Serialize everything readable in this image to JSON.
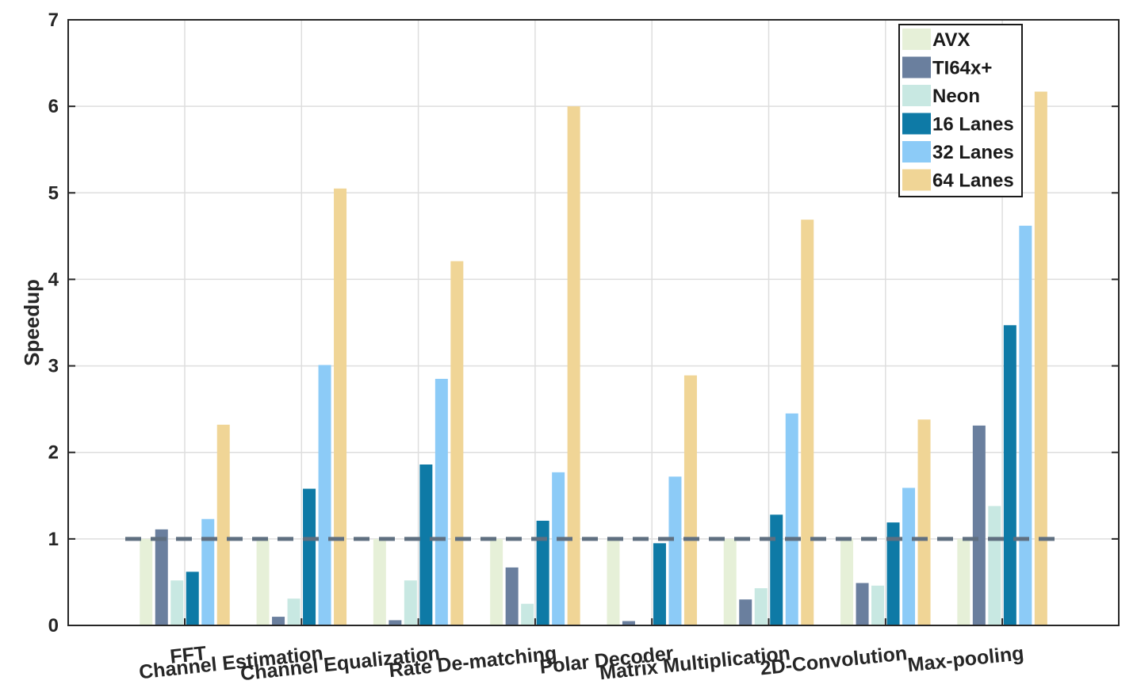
{
  "chart_data": {
    "type": "bar",
    "title": "",
    "xlabel": "",
    "ylabel": "Speedup",
    "ylim": [
      0,
      7
    ],
    "yticks": [
      0,
      1,
      2,
      3,
      4,
      5,
      6,
      7
    ],
    "grid": true,
    "legend_position": "top-right",
    "reference_line": {
      "y": 1,
      "style": "dashed",
      "color": "#5f6f80"
    },
    "categories": [
      "FFT",
      "Channel Estimation",
      "Channel Equalization",
      "Rate De-matching",
      "Polar Decoder",
      "Matrix Multiplication",
      "2D-Convolution",
      "Max-pooling"
    ],
    "series": [
      {
        "name": "AVX",
        "color": "#e6f0d8",
        "values": [
          1.0,
          1.0,
          1.0,
          1.0,
          1.0,
          1.0,
          1.0,
          1.0
        ]
      },
      {
        "name": "TI64x+",
        "color": "#6a7f9e",
        "values": [
          1.11,
          0.1,
          0.06,
          0.67,
          0.05,
          0.3,
          0.49,
          2.31
        ]
      },
      {
        "name": "Neon",
        "color": "#c8e8e2",
        "values": [
          0.52,
          0.31,
          0.52,
          0.25,
          0.0,
          0.43,
          0.46,
          1.38
        ]
      },
      {
        "name": "16 Lanes",
        "color": "#0e7aa6",
        "values": [
          0.62,
          1.58,
          1.86,
          1.21,
          0.95,
          1.28,
          1.19,
          3.47
        ]
      },
      {
        "name": "32 Lanes",
        "color": "#8ccbf7",
        "values": [
          1.23,
          3.01,
          2.85,
          1.77,
          1.72,
          2.45,
          1.59,
          4.62
        ]
      },
      {
        "name": "64 Lanes",
        "color": "#f0d596",
        "values": [
          2.32,
          5.05,
          4.21,
          6.0,
          2.89,
          4.69,
          2.38,
          6.17
        ]
      }
    ]
  }
}
